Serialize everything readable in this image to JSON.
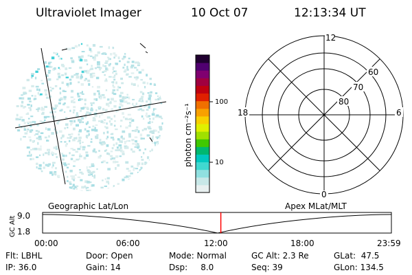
{
  "header": {
    "instrument": "Ultraviolet Imager",
    "date": "10 Oct 07",
    "time": "12:13:34 UT"
  },
  "colorbar": {
    "label": "photon cm⁻²s⁻¹",
    "ticks": [
      "100",
      "10"
    ],
    "colors": [
      "#e8f0f0",
      "#c8e8e8",
      "#90e0e0",
      "#40d8d0",
      "#00c8c0",
      "#00b870",
      "#40c800",
      "#a0e000",
      "#e0f000",
      "#f8d000",
      "#f8a000",
      "#f07000",
      "#e02000",
      "#c00010",
      "#a00040",
      "#800070",
      "#500070",
      "#200030"
    ]
  },
  "polar": {
    "mlt_labels": {
      "top": "12",
      "left": "18",
      "right": "6",
      "bottom": "0"
    },
    "lat_labels": [
      "60",
      "70",
      "80"
    ]
  },
  "timeline": {
    "left_title": "Geographic Lat/Lon",
    "right_title": "Apex MLat/MLT",
    "ylabel": "GC Alt",
    "ymax": "9.0",
    "ymin": "1.8",
    "times": [
      "00:00",
      "06:00",
      "12:00",
      "18:00",
      "23:59"
    ],
    "marker_fraction": 0.511,
    "marker_color": "#ff0000"
  },
  "status": {
    "flt": "Flt: LBHL",
    "ip": "IP: 36.0",
    "door": "Door: Open",
    "gain": "Gain: 14",
    "mode": "Mode: Normal",
    "dsp": "Dsp:     8.0",
    "gcalt": "GC Alt: 2.3 Re",
    "seq": "Seq: 39",
    "glat": "GLat:  47.5",
    "glon": "GLon: 134.5"
  }
}
